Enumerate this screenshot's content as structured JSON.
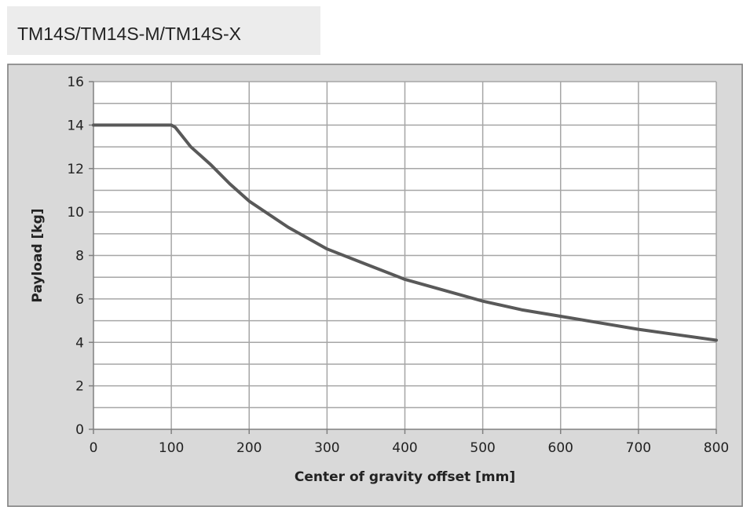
{
  "header": {
    "title": "TM14S/TM14S-M/TM14S-X"
  },
  "colors": {
    "background": "#d9d9d9",
    "plot": "#ffffff",
    "grid": "#a6a6a6",
    "line": "#595959"
  },
  "chart_data": {
    "type": "line",
    "title": "",
    "xlabel": "Center of gravity offset [mm]",
    "ylabel": "Payload [kg]",
    "xlim": [
      0,
      800
    ],
    "ylim": [
      0,
      16
    ],
    "xticks": [
      0,
      100,
      200,
      300,
      400,
      500,
      600,
      700,
      800
    ],
    "yticks": [
      0,
      2,
      4,
      6,
      8,
      10,
      12,
      14,
      16
    ],
    "x_tick_labels": [
      "0",
      "100",
      "200",
      "300",
      "400",
      "500",
      "600",
      "700",
      "800"
    ],
    "y_tick_labels": [
      "0",
      "2",
      "4",
      "6",
      "8",
      "10",
      "12",
      "14",
      "16"
    ],
    "grid": true,
    "y_minor_step": 1,
    "series": [
      {
        "x": [
          0,
          100,
          105,
          125,
          150,
          175,
          200,
          250,
          300,
          350,
          400,
          450,
          500,
          550,
          600,
          650,
          700,
          750,
          800
        ],
        "y": [
          14,
          14,
          13.9,
          13.0,
          12.2,
          11.3,
          10.5,
          9.3,
          8.3,
          7.6,
          6.9,
          6.4,
          5.9,
          5.5,
          5.2,
          4.9,
          4.6,
          4.35,
          4.1
        ]
      }
    ]
  }
}
